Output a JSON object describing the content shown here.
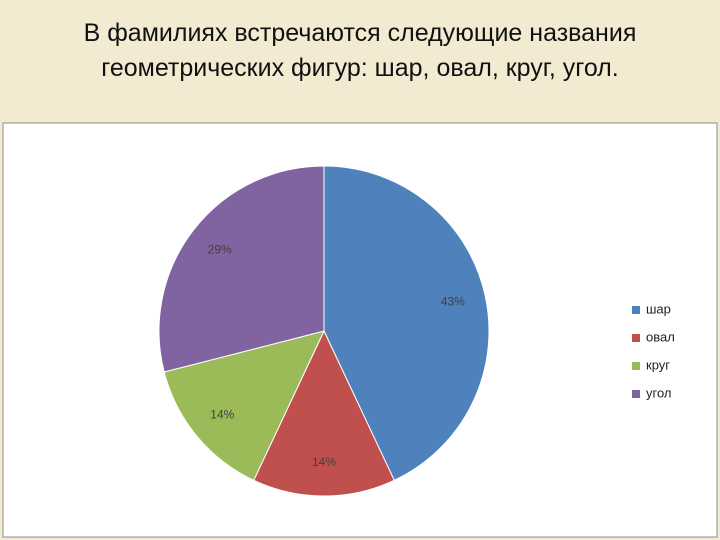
{
  "chart_data": {
    "type": "pie",
    "title": "В фамилиях встречаются следующие названия геометрических фигур: шар, овал, круг, угол.",
    "categories": [
      "шар",
      "овал",
      "круг",
      "угол"
    ],
    "values": [
      43,
      14,
      14,
      29
    ],
    "value_labels": [
      "43%",
      "14%",
      "14%",
      "29%"
    ],
    "colors": [
      "#4f81bd",
      "#c0504d",
      "#9bbb59",
      "#8064a2"
    ],
    "legend": "right"
  }
}
